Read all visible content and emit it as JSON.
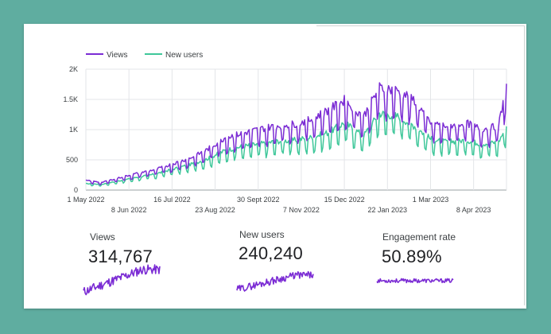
{
  "legend": [
    {
      "name": "Views",
      "color": "#7b2cd4"
    },
    {
      "name": "New users",
      "color": "#3fc79a"
    }
  ],
  "metrics": [
    {
      "label": "Views",
      "value": "314,767",
      "color": "#7b2cd4"
    },
    {
      "label": "New users",
      "value": "240,240",
      "color": "#7b2cd4"
    },
    {
      "label": "Engagement rate",
      "value": "50.89%",
      "color": "#7b2cd4"
    }
  ],
  "chart_data": {
    "type": "line",
    "title": "",
    "xlabel": "",
    "ylabel": "",
    "ylim": [
      0,
      2000
    ],
    "y_ticks": [
      "0",
      "500",
      "1K",
      "1.5K",
      "2K"
    ],
    "y_tick_values": [
      0,
      500,
      1000,
      1500,
      2000
    ],
    "x_range": [
      "2022-05-01",
      "2023-05-07"
    ],
    "x_ticks_upper": [
      "1 May 2022",
      "16 Jul 2022",
      "30 Sept 2022",
      "15 Dec 2022",
      "1 Mar 2023"
    ],
    "x_ticks_upper_dates": [
      "2022-05-01",
      "2022-07-16",
      "2022-09-30",
      "2022-12-15",
      "2023-03-01"
    ],
    "x_ticks_lower": [
      "8 Jun 2022",
      "23 Aug 2022",
      "7 Nov 2022",
      "22 Jan 2023",
      "8 Apr 2023"
    ],
    "x_ticks_lower_dates": [
      "2022-06-08",
      "2022-08-23",
      "2022-11-07",
      "2023-01-22",
      "2023-04-08"
    ],
    "grid": true,
    "legend_position": "top-left",
    "series": [
      {
        "name": "Views",
        "color": "#7b2cd4",
        "x": [
          "2022-05-01",
          "2022-05-15",
          "2022-06-01",
          "2022-06-15",
          "2022-07-01",
          "2022-07-15",
          "2022-08-01",
          "2022-08-15",
          "2022-09-01",
          "2022-09-15",
          "2022-10-01",
          "2022-10-15",
          "2022-11-01",
          "2022-11-15",
          "2022-12-01",
          "2022-12-15",
          "2023-01-01",
          "2023-01-15",
          "2023-02-01",
          "2023-02-15",
          "2023-03-01",
          "2023-03-15",
          "2023-04-01",
          "2023-04-15",
          "2023-04-30",
          "2023-05-07"
        ],
        "y": [
          150,
          120,
          200,
          260,
          320,
          400,
          500,
          620,
          820,
          880,
          950,
          1000,
          1030,
          1100,
          1250,
          1400,
          1150,
          1600,
          1550,
          1400,
          1050,
          1000,
          1050,
          950,
          1000,
          1650
        ]
      },
      {
        "name": "New users",
        "color": "#3fc79a",
        "x": [
          "2022-05-01",
          "2022-05-15",
          "2022-06-01",
          "2022-06-15",
          "2022-07-01",
          "2022-07-15",
          "2022-08-01",
          "2022-08-15",
          "2022-09-01",
          "2022-09-15",
          "2022-10-01",
          "2022-10-15",
          "2022-11-01",
          "2022-11-15",
          "2022-12-01",
          "2022-12-15",
          "2023-01-01",
          "2023-01-15",
          "2023-02-01",
          "2023-02-15",
          "2023-03-01",
          "2023-03-15",
          "2023-04-01",
          "2023-04-15",
          "2023-04-30",
          "2023-05-07"
        ],
        "y": [
          100,
          90,
          150,
          200,
          250,
          320,
          400,
          480,
          620,
          680,
          720,
          760,
          780,
          820,
          900,
          1050,
          850,
          1200,
          1150,
          1000,
          800,
          750,
          780,
          720,
          750,
          1000
        ]
      }
    ]
  }
}
